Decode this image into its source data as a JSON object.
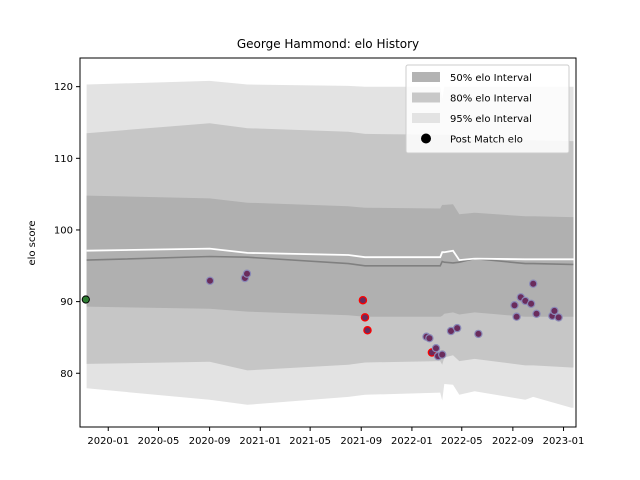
{
  "chart_data": {
    "type": "scatter",
    "title": "George Hammond: elo History",
    "xlabel": "",
    "ylabel": "elo score",
    "ylim": [
      72.5,
      124
    ],
    "xlim": [
      "2019-10-25",
      "2023-01-31"
    ],
    "x_ticks": [
      "2020-01",
      "2020-05",
      "2020-09",
      "2021-01",
      "2021-05",
      "2021-09",
      "2022-01",
      "2022-05",
      "2022-09",
      "2023-01"
    ],
    "y_ticks": [
      80,
      90,
      100,
      110,
      120
    ],
    "legend_position": "top-right",
    "legend": [
      {
        "label": "50% elo Interval",
        "kind": "band",
        "color": "#b3b3b3"
      },
      {
        "label": "80% elo Interval",
        "kind": "band",
        "color": "#c8c8c8"
      },
      {
        "label": "95% elo Interval",
        "kind": "band",
        "color": "#e3e3e3"
      },
      {
        "label": "Post Match elo",
        "kind": "marker",
        "color": "#000000"
      }
    ],
    "colors": {
      "band50": "#b0b0b0",
      "band80": "#c6c6c6",
      "band95": "#e3e3e3",
      "median_line": "#808080",
      "mean_line": "#ffffff",
      "point_fill": "#6a2c5c",
      "point_edge": "#8a8ab8",
      "highlight_edge": "#ff0000",
      "first_point_fill": "#2e7d32",
      "first_point_edge": "#000000"
    },
    "bands": {
      "x": [
        "2019-11-10",
        "2020-09-01",
        "2020-12-01",
        "2021-08-01",
        "2021-09-10",
        "2022-03-10",
        "2022-03-15",
        "2022-03-20",
        "2022-04-10",
        "2022-04-25",
        "2022-06-01",
        "2022-10-01",
        "2022-10-20",
        "2023-01-20",
        "2023-01-25"
      ],
      "p95_hi": [
        120.3,
        120.8,
        120.3,
        120.1,
        120.0,
        120.0,
        118.3,
        120.0,
        120.0,
        120.0,
        120.0,
        120.0,
        120.0,
        120.0,
        120.0
      ],
      "p95_lo": [
        77.9,
        76.3,
        75.6,
        76.7,
        77.0,
        77.3,
        76.2,
        78.5,
        78.4,
        77.0,
        77.5,
        76.3,
        76.7,
        75.2,
        75.2
      ],
      "p80_hi": [
        113.5,
        114.9,
        114.2,
        113.7,
        113.4,
        113.3,
        113.3,
        113.3,
        113.3,
        112.5,
        112.5,
        112.5,
        112.5,
        112.4,
        112.4
      ],
      "p80_lo": [
        81.3,
        81.6,
        80.4,
        81.2,
        81.5,
        81.7,
        81.2,
        82.2,
        82.5,
        81.7,
        82.0,
        81.1,
        81.1,
        80.8,
        80.8
      ],
      "p50_hi": [
        104.8,
        104.4,
        103.8,
        103.3,
        103.1,
        103.0,
        103.5,
        103.5,
        103.6,
        102.2,
        102.4,
        101.9,
        101.9,
        101.8,
        101.8
      ],
      "p50_lo": [
        89.3,
        89.0,
        88.6,
        88.1,
        87.9,
        87.9,
        88.0,
        88.3,
        88.5,
        88.2,
        88.5,
        87.9,
        87.9,
        87.9,
        87.9
      ],
      "median": [
        95.8,
        96.3,
        96.2,
        95.3,
        95.0,
        95.0,
        95.6,
        95.5,
        95.4,
        95.5,
        96.0,
        95.3,
        95.3,
        95.2,
        95.2
      ],
      "mean": [
        97.1,
        97.4,
        96.8,
        96.5,
        96.2,
        96.2,
        96.9,
        96.9,
        97.1,
        95.8,
        96.0,
        95.9,
        95.9,
        95.9,
        95.9
      ]
    },
    "points": [
      {
        "x": "2019-11-08",
        "y": 90.3,
        "marker": "first"
      },
      {
        "x": "2020-09-02",
        "y": 92.9,
        "marker": "normal"
      },
      {
        "x": "2020-11-25",
        "y": 93.3,
        "marker": "normal"
      },
      {
        "x": "2020-11-30",
        "y": 93.9,
        "marker": "normal"
      },
      {
        "x": "2021-09-05",
        "y": 90.2,
        "marker": "highlight"
      },
      {
        "x": "2021-09-10",
        "y": 87.8,
        "marker": "highlight"
      },
      {
        "x": "2021-09-16",
        "y": 86.0,
        "marker": "highlight"
      },
      {
        "x": "2022-02-05",
        "y": 85.1,
        "marker": "normal"
      },
      {
        "x": "2022-02-12",
        "y": 84.9,
        "marker": "normal"
      },
      {
        "x": "2022-02-18",
        "y": 82.9,
        "marker": "highlight"
      },
      {
        "x": "2022-02-28",
        "y": 83.5,
        "marker": "normal"
      },
      {
        "x": "2022-03-05",
        "y": 82.4,
        "marker": "normal"
      },
      {
        "x": "2022-03-15",
        "y": 82.6,
        "marker": "normal"
      },
      {
        "x": "2022-04-05",
        "y": 85.9,
        "marker": "normal"
      },
      {
        "x": "2022-04-20",
        "y": 86.3,
        "marker": "normal"
      },
      {
        "x": "2022-06-10",
        "y": 85.5,
        "marker": "normal"
      },
      {
        "x": "2022-09-05",
        "y": 89.5,
        "marker": "normal"
      },
      {
        "x": "2022-09-10",
        "y": 87.9,
        "marker": "normal"
      },
      {
        "x": "2022-09-20",
        "y": 90.6,
        "marker": "normal"
      },
      {
        "x": "2022-10-01",
        "y": 90.1,
        "marker": "normal"
      },
      {
        "x": "2022-10-15",
        "y": 89.7,
        "marker": "normal"
      },
      {
        "x": "2022-10-20",
        "y": 92.5,
        "marker": "normal"
      },
      {
        "x": "2022-10-28",
        "y": 88.3,
        "marker": "normal"
      },
      {
        "x": "2022-12-05",
        "y": 88.0,
        "marker": "normal"
      },
      {
        "x": "2022-12-10",
        "y": 88.7,
        "marker": "normal"
      },
      {
        "x": "2022-12-20",
        "y": 87.8,
        "marker": "normal"
      }
    ]
  }
}
